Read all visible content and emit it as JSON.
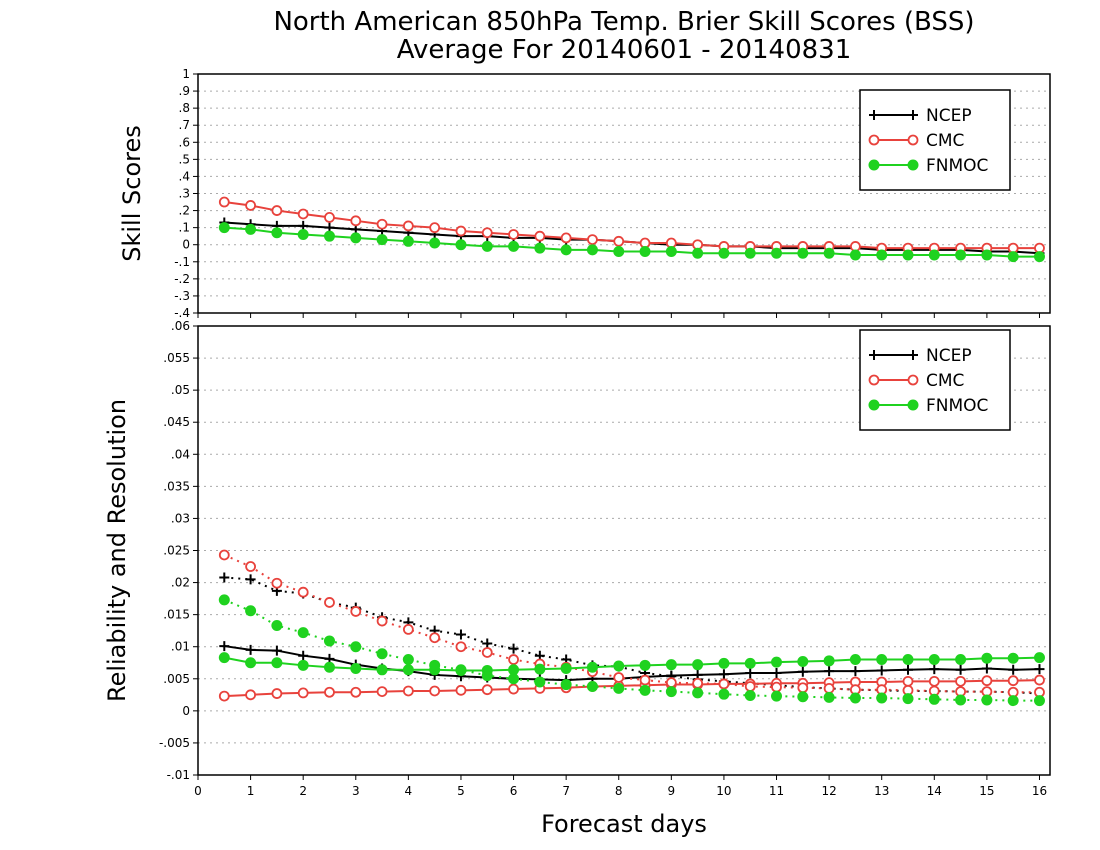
{
  "title": {
    "line1": "North American 850hPa Temp. Brier Skill Scores (BSS)",
    "line2": "Average For 20140601 - 20140831"
  },
  "xlabel": "Forecast days",
  "colors": {
    "NCEP": "#000000",
    "CMC": "#e8423c",
    "FNMOC": "#1fd21f",
    "grid": "#aaaaaa"
  },
  "chart_data": [
    {
      "type": "line",
      "panel": "top",
      "ylabel": "Skill Scores",
      "xlim": [
        0,
        16.2
      ],
      "ylim": [
        -0.4,
        1
      ],
      "yticks": [
        -0.4,
        -0.3,
        -0.2,
        -0.1,
        0,
        0.1,
        0.2,
        0.3,
        0.4,
        0.5,
        0.6,
        0.7,
        0.8,
        0.9,
        1
      ],
      "xticks": [
        0,
        1,
        2,
        3,
        4,
        5,
        6,
        7,
        8,
        9,
        10,
        11,
        12,
        13,
        14,
        15,
        16
      ],
      "grid": "horizontal dotted",
      "legend_position": "top-right",
      "x": [
        0.5,
        1,
        1.5,
        2,
        2.5,
        3,
        3.5,
        4,
        4.5,
        5,
        5.5,
        6,
        6.5,
        7,
        7.5,
        8,
        8.5,
        9,
        9.5,
        10,
        10.5,
        11,
        11.5,
        12,
        12.5,
        13,
        13.5,
        14,
        14.5,
        15,
        15.5,
        16
      ],
      "series": [
        {
          "name": "NCEP",
          "marker": "plus",
          "style": "solid",
          "values": [
            0.13,
            0.12,
            0.11,
            0.11,
            0.1,
            0.09,
            0.08,
            0.07,
            0.06,
            0.05,
            0.05,
            0.04,
            0.04,
            0.03,
            0.03,
            0.02,
            0.01,
            0.0,
            0.0,
            -0.01,
            -0.01,
            -0.02,
            -0.02,
            -0.02,
            -0.02,
            -0.03,
            -0.03,
            -0.03,
            -0.03,
            -0.04,
            -0.04,
            -0.05
          ]
        },
        {
          "name": "CMC",
          "marker": "open-circle",
          "style": "solid",
          "values": [
            0.25,
            0.23,
            0.2,
            0.18,
            0.16,
            0.14,
            0.12,
            0.11,
            0.1,
            0.08,
            0.07,
            0.06,
            0.05,
            0.04,
            0.03,
            0.02,
            0.01,
            0.01,
            0.0,
            -0.01,
            -0.01,
            -0.01,
            -0.01,
            -0.01,
            -0.01,
            -0.02,
            -0.02,
            -0.02,
            -0.02,
            -0.02,
            -0.02,
            -0.02
          ]
        },
        {
          "name": "FNMOC",
          "marker": "filled-circle",
          "style": "solid",
          "values": [
            0.1,
            0.09,
            0.07,
            0.06,
            0.05,
            0.04,
            0.03,
            0.02,
            0.01,
            0.0,
            -0.01,
            -0.01,
            -0.02,
            -0.03,
            -0.03,
            -0.04,
            -0.04,
            -0.04,
            -0.05,
            -0.05,
            -0.05,
            -0.05,
            -0.05,
            -0.05,
            -0.06,
            -0.06,
            -0.06,
            -0.06,
            -0.06,
            -0.06,
            -0.07,
            -0.07
          ]
        }
      ]
    },
    {
      "type": "line",
      "panel": "bottom",
      "ylabel": "Reliability and Resolution",
      "xlim": [
        0,
        16.2
      ],
      "ylim": [
        -0.01,
        0.06
      ],
      "yticks": [
        -0.01,
        -0.005,
        0,
        0.005,
        0.01,
        0.015,
        0.02,
        0.025,
        0.03,
        0.035,
        0.04,
        0.045,
        0.05,
        0.055,
        0.06
      ],
      "xticks": [
        0,
        1,
        2,
        3,
        4,
        5,
        6,
        7,
        8,
        9,
        10,
        11,
        12,
        13,
        14,
        15,
        16
      ],
      "grid": "horizontal dotted",
      "legend_position": "top-right",
      "x": [
        0.5,
        1,
        1.5,
        2,
        2.5,
        3,
        3.5,
        4,
        4.5,
        5,
        5.5,
        6,
        6.5,
        7,
        7.5,
        8,
        8.5,
        9,
        9.5,
        10,
        10.5,
        11,
        11.5,
        12,
        12.5,
        13,
        13.5,
        14,
        14.5,
        15,
        15.5,
        16
      ],
      "series": [
        {
          "name": "NCEP",
          "marker": "plus",
          "style": "solid",
          "values": [
            0.0101,
            0.0095,
            0.0094,
            0.0086,
            0.0081,
            0.0072,
            0.0066,
            0.0062,
            0.0056,
            0.0054,
            0.0052,
            0.005,
            0.0049,
            0.0048,
            0.005,
            0.005,
            0.0053,
            0.0055,
            0.0056,
            0.0057,
            0.0059,
            0.0059,
            0.0061,
            0.0062,
            0.0062,
            0.0063,
            0.0064,
            0.0065,
            0.0064,
            0.0066,
            0.0064,
            0.0065
          ]
        },
        {
          "name": "NCEP",
          "marker": "plus",
          "style": "dotted",
          "values": [
            0.0208,
            0.0205,
            0.0187,
            0.0183,
            0.0169,
            0.0161,
            0.0146,
            0.0138,
            0.0125,
            0.0119,
            0.0105,
            0.0097,
            0.0086,
            0.008,
            0.0071,
            0.0069,
            0.0059,
            0.0054,
            0.0049,
            0.0046,
            0.0043,
            0.004,
            0.0037,
            0.0035,
            0.0033,
            0.0032,
            0.0031,
            0.0031,
            0.003,
            0.003,
            0.0029,
            0.0027
          ]
        },
        {
          "name": "CMC",
          "marker": "open-circle",
          "style": "solid",
          "values": [
            0.0023,
            0.0025,
            0.0027,
            0.0028,
            0.0029,
            0.0029,
            0.003,
            0.0031,
            0.0031,
            0.0032,
            0.0033,
            0.0034,
            0.0035,
            0.0036,
            0.0038,
            0.0039,
            0.004,
            0.0041,
            0.0041,
            0.0042,
            0.0042,
            0.0043,
            0.0043,
            0.0044,
            0.0045,
            0.0045,
            0.0046,
            0.0046,
            0.0046,
            0.0047,
            0.0047,
            0.0048
          ]
        },
        {
          "name": "CMC",
          "marker": "open-circle",
          "style": "dotted",
          "values": [
            0.0243,
            0.0225,
            0.0199,
            0.0185,
            0.0169,
            0.0155,
            0.014,
            0.0127,
            0.0114,
            0.01,
            0.0091,
            0.008,
            0.0073,
            0.0068,
            0.0061,
            0.0052,
            0.0048,
            0.0044,
            0.0043,
            0.0042,
            0.0038,
            0.0037,
            0.0036,
            0.0035,
            0.0033,
            0.0033,
            0.0032,
            0.0031,
            0.003,
            0.003,
            0.0029,
            0.0029
          ]
        },
        {
          "name": "FNMOC",
          "marker": "filled-circle",
          "style": "solid",
          "values": [
            0.0083,
            0.0075,
            0.0075,
            0.0071,
            0.0068,
            0.0066,
            0.0064,
            0.0064,
            0.0064,
            0.0063,
            0.0063,
            0.0064,
            0.0065,
            0.0066,
            0.0068,
            0.007,
            0.0071,
            0.0072,
            0.0072,
            0.0074,
            0.0074,
            0.0076,
            0.0077,
            0.0078,
            0.008,
            0.008,
            0.008,
            0.008,
            0.008,
            0.0082,
            0.0082,
            0.0083
          ]
        },
        {
          "name": "FNMOC",
          "marker": "filled-circle",
          "style": "dotted",
          "values": [
            0.0173,
            0.0156,
            0.0133,
            0.0122,
            0.0109,
            0.01,
            0.0089,
            0.008,
            0.0071,
            0.0064,
            0.0055,
            0.005,
            0.0045,
            0.0041,
            0.0038,
            0.0035,
            0.0032,
            0.003,
            0.0028,
            0.0026,
            0.0024,
            0.0023,
            0.0022,
            0.0021,
            0.002,
            0.002,
            0.0019,
            0.0018,
            0.0017,
            0.0017,
            0.0016,
            0.0016
          ]
        }
      ]
    }
  ],
  "legend": {
    "top": [
      "NCEP",
      "CMC",
      "FNMOC"
    ],
    "bottom": [
      "NCEP",
      "CMC",
      "FNMOC"
    ]
  }
}
